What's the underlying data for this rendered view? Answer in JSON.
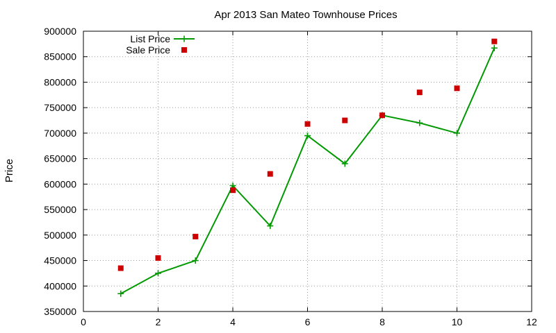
{
  "chart_data": {
    "type": "line",
    "title": "Apr 2013 San Mateo Townhouse Prices",
    "xlabel": "",
    "ylabel": "Price",
    "xlim": [
      0,
      12
    ],
    "ylim": [
      350000,
      900000
    ],
    "x_ticks": [
      0,
      2,
      4,
      6,
      8,
      10,
      12
    ],
    "y_ticks": [
      350000,
      400000,
      450000,
      500000,
      550000,
      600000,
      650000,
      700000,
      750000,
      800000,
      850000,
      900000
    ],
    "grid": true,
    "legend_position": "top-left",
    "series": [
      {
        "name": "List Price",
        "style": "line-with-plus-markers",
        "color": "#009900",
        "x": [
          1,
          2,
          3,
          4,
          5,
          6,
          7,
          8,
          9,
          10,
          11
        ],
        "values": [
          385000,
          425000,
          450000,
          597000,
          518000,
          695000,
          640000,
          735000,
          720000,
          700000,
          867000
        ]
      },
      {
        "name": "Sale Price",
        "style": "square-markers",
        "color": "#cc0000",
        "x": [
          1,
          2,
          3,
          4,
          5,
          6,
          7,
          8,
          9,
          10,
          11
        ],
        "values": [
          435000,
          455000,
          497000,
          588000,
          620000,
          718000,
          725000,
          735000,
          780000,
          788000,
          880000
        ]
      }
    ]
  }
}
